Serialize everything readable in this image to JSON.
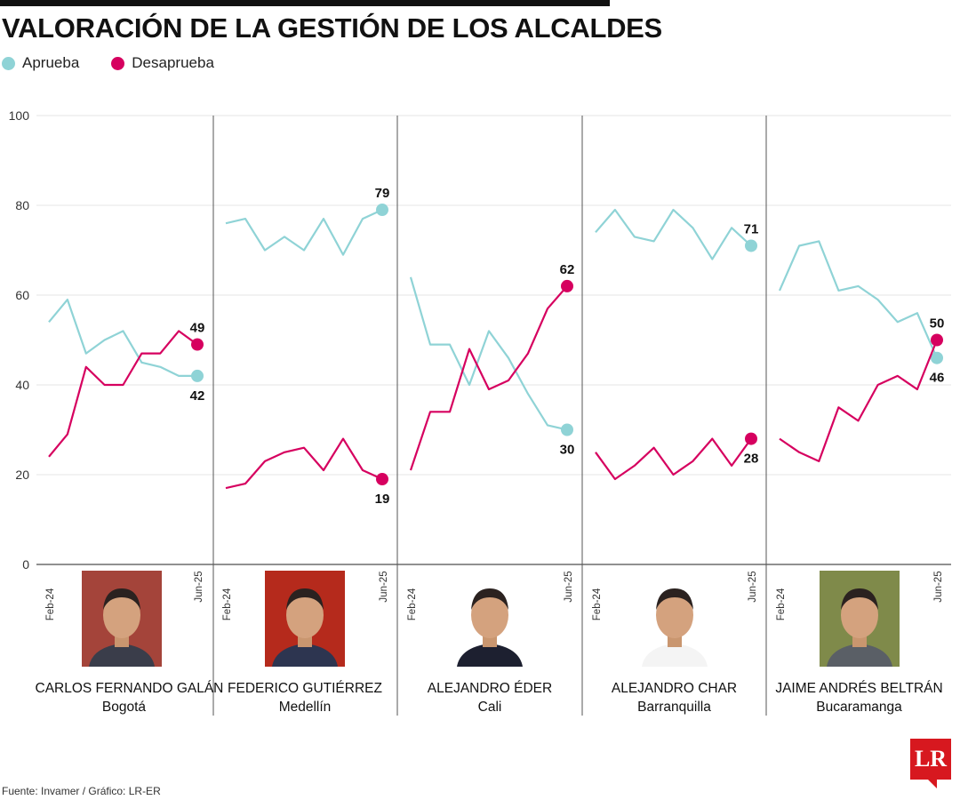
{
  "header": {
    "title": "VALORACIÓN DE LA GESTIÓN DE LOS ALCALDES"
  },
  "legend": [
    {
      "label": "Aprueba",
      "color": "#8fd3d6"
    },
    {
      "label": "Desaprueba",
      "color": "#d6005f"
    }
  ],
  "footer": {
    "source": "Fuente: Invamer / Gráfico: LR-ER",
    "logo": "LR"
  },
  "chart_data": {
    "type": "line",
    "ylim": [
      0,
      100
    ],
    "yticks": [
      "0",
      "20",
      "40",
      "60",
      "80",
      "100"
    ],
    "x_start_label": "Feb-24",
    "x_end_label": "Jun-25",
    "colors": {
      "aprueba": "#8fd3d6",
      "desaprueba": "#d6005f"
    },
    "panels": [
      {
        "name": "CARLOS FERNANDO GALÁN",
        "city": "Bogotá",
        "series": [
          {
            "name": "Aprueba",
            "values": [
              54,
              59,
              47,
              50,
              52,
              45,
              44,
              42,
              42
            ],
            "end_label": "42"
          },
          {
            "name": "Desaprueba",
            "values": [
              24,
              29,
              44,
              40,
              40,
              47,
              47,
              52,
              49
            ],
            "end_label": "49"
          }
        ]
      },
      {
        "name": "FEDERICO GUTIÉRREZ",
        "city": "Medellín",
        "series": [
          {
            "name": "Aprueba",
            "values": [
              76,
              77,
              70,
              73,
              70,
              77,
              69,
              77,
              79
            ],
            "end_label": "79"
          },
          {
            "name": "Desaprueba",
            "values": [
              17,
              18,
              23,
              25,
              26,
              21,
              28,
              21,
              19
            ],
            "end_label": "19"
          }
        ]
      },
      {
        "name": "ALEJANDRO ÉDER",
        "city": "Cali",
        "series": [
          {
            "name": "Aprueba",
            "values": [
              64,
              49,
              49,
              40,
              52,
              46,
              38,
              31,
              30
            ],
            "end_label": "30"
          },
          {
            "name": "Desaprueba",
            "values": [
              21,
              34,
              34,
              48,
              39,
              41,
              47,
              57,
              62
            ],
            "end_label": "62"
          }
        ]
      },
      {
        "name": "ALEJANDRO CHAR",
        "city": "Barranquilla",
        "series": [
          {
            "name": "Aprueba",
            "values": [
              74,
              79,
              73,
              72,
              79,
              75,
              68,
              75,
              71
            ],
            "end_label": "71"
          },
          {
            "name": "Desaprueba",
            "values": [
              25,
              19,
              22,
              26,
              20,
              23,
              28,
              22,
              28
            ],
            "end_label": "28"
          }
        ]
      },
      {
        "name": "JAIME ANDRÉS BELTRÁN",
        "city": "Bucaramanga",
        "series": [
          {
            "name": "Aprueba",
            "values": [
              61,
              71,
              72,
              61,
              62,
              59,
              54,
              56,
              46
            ],
            "end_label": "46"
          },
          {
            "name": "Desaprueba",
            "values": [
              28,
              25,
              23,
              35,
              32,
              40,
              42,
              39,
              50
            ],
            "end_label": "50"
          }
        ]
      }
    ]
  }
}
